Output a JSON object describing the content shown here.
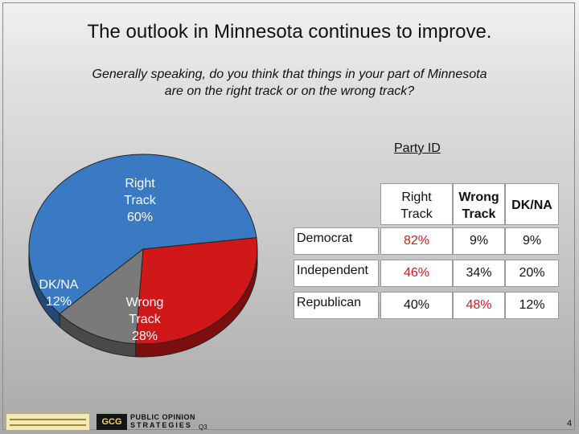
{
  "title": "The outlook in Minnesota continues to improve.",
  "question": {
    "line1": "Generally speaking, do you think that things in your part of Minnesota",
    "line2": "are on the right track or on the wrong track?"
  },
  "chart_data": [
    {
      "type": "pie",
      "title": "",
      "categories": [
        "Right Track",
        "Wrong Track",
        "DK/NA"
      ],
      "values": [
        60,
        28,
        12
      ],
      "unit": "%",
      "colors": [
        "#3a7ac3",
        "#d01818",
        "#7a7a7a"
      ],
      "labels": [
        {
          "lines": [
            "Right",
            "Track",
            "60%"
          ]
        },
        {
          "lines": [
            "Wrong",
            "Track",
            "28%"
          ]
        },
        {
          "lines": [
            "DK/NA",
            "12%"
          ]
        }
      ]
    },
    {
      "type": "table",
      "title": "Party ID",
      "columns": [
        {
          "line1": "Right",
          "line2": "Track"
        },
        {
          "line1": "Wrong",
          "line2": "Track"
        },
        {
          "line1": "DK/NA",
          "line2": ""
        }
      ],
      "rows": [
        {
          "label": "Democrat",
          "values": [
            "82%",
            "9%",
            "9%"
          ],
          "highlight": [
            true,
            false,
            false
          ]
        },
        {
          "label": "Independent",
          "values": [
            "46%",
            "34%",
            "20%"
          ],
          "highlight": [
            true,
            false,
            false
          ]
        },
        {
          "label": "Republican",
          "values": [
            "40%",
            "48%",
            "12%"
          ],
          "highlight": [
            false,
            true,
            false
          ]
        }
      ]
    }
  ],
  "footer": {
    "logo_text": "GCG",
    "firm_line1": "PUBLIC OPINION",
    "firm_line2": "STRATEGIES",
    "question_number": "Q3",
    "page_number": "4"
  },
  "colors": {
    "highlight_text": "#d21a1a"
  }
}
